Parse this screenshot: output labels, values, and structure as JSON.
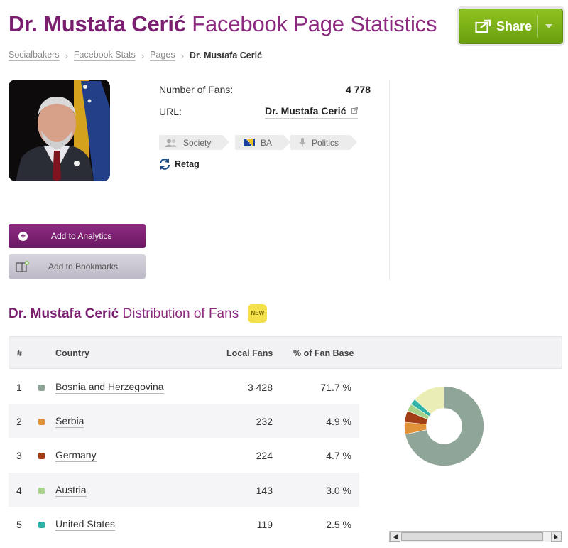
{
  "page": {
    "title_name": "Dr. Mustafa Cerić",
    "title_rest": "Facebook Page Statistics"
  },
  "share": {
    "label": "Share"
  },
  "breadcrumb": {
    "items": [
      "Socialbakers",
      "Facebook Stats",
      "Pages"
    ],
    "current": "Dr. Mustafa Cerić"
  },
  "profile": {
    "fans_label": "Number of Fans:",
    "fans_value": "4 778",
    "url_label": "URL:",
    "url_text": "Dr. Mustafa Cerić",
    "tags": [
      "Society",
      "BA",
      "Politics"
    ],
    "retag_label": "Retag"
  },
  "actions": {
    "analytics_label": "Add to Analytics",
    "bookmarks_label": "Add to Bookmarks"
  },
  "distribution": {
    "title_name": "Dr. Mustafa Cerić",
    "title_rest": "Distribution of Fans",
    "badge": "NEW",
    "columns": [
      "#",
      "Country",
      "Local Fans",
      "% of Fan Base"
    ],
    "rows": [
      {
        "rank": "1",
        "country": "Bosnia and Herzegovina",
        "fans": "3 428",
        "pct": "71.7 %",
        "color": "#8fa597"
      },
      {
        "rank": "2",
        "country": "Serbia",
        "fans": "232",
        "pct": "4.9 %",
        "color": "#e0923a"
      },
      {
        "rank": "3",
        "country": "Germany",
        "fans": "224",
        "pct": "4.7 %",
        "color": "#a23f14"
      },
      {
        "rank": "4",
        "country": "Austria",
        "fans": "143",
        "pct": "3.0 %",
        "color": "#a7d48a"
      },
      {
        "rank": "5",
        "country": "United States",
        "fans": "119",
        "pct": "2.5 %",
        "color": "#2fb3a8"
      }
    ],
    "other_color": "#ebeeb4"
  },
  "colors": {
    "brand_purple": "#7a1f6f",
    "share_green": "#7cb518"
  }
}
